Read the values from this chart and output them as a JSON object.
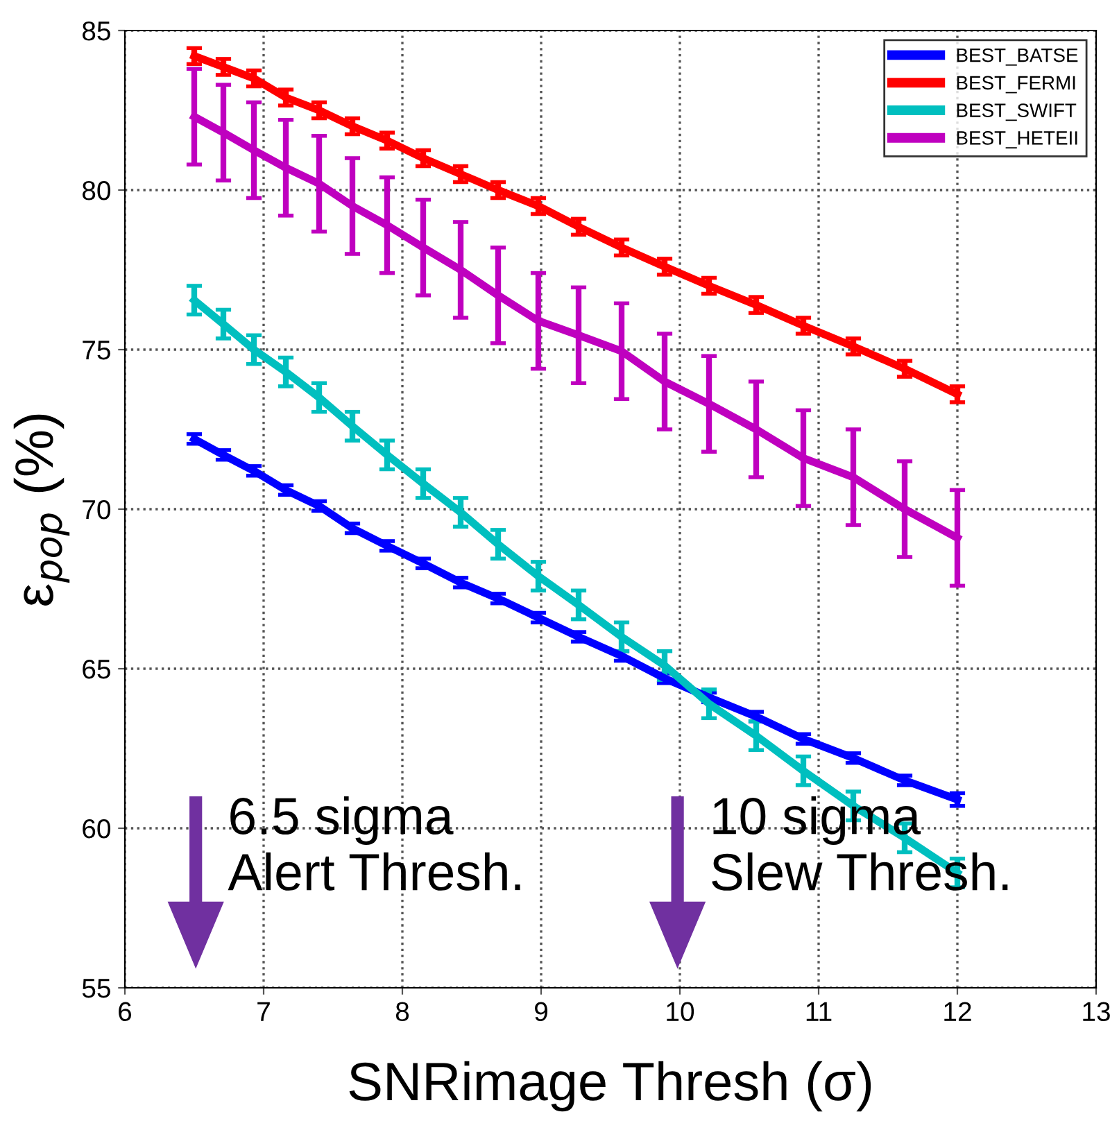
{
  "chart_data": {
    "type": "line",
    "xlabel": "SNRimage Thresh (σ)",
    "ylabel": "ε$_{pop}$ (%)",
    "x": [
      6.5,
      6.71,
      6.93,
      7.16,
      7.4,
      7.64,
      7.89,
      8.15,
      8.42,
      8.69,
      8.98,
      9.27,
      9.58,
      9.89,
      10.21,
      10.55,
      10.89,
      11.25,
      11.62,
      12.0
    ],
    "series": [
      {
        "name": "BEST_BATSE",
        "color": "#0000ff",
        "values": [
          72.2,
          71.7,
          71.2,
          70.6,
          70.1,
          69.4,
          68.85,
          68.3,
          67.7,
          67.2,
          66.6,
          66.0,
          65.4,
          64.7,
          64.1,
          63.5,
          62.8,
          62.2,
          61.5,
          60.9
        ],
        "errors": [
          0.15,
          0.15,
          0.15,
          0.15,
          0.15,
          0.15,
          0.15,
          0.15,
          0.15,
          0.15,
          0.15,
          0.15,
          0.15,
          0.15,
          0.15,
          0.15,
          0.15,
          0.15,
          0.15,
          0.2
        ]
      },
      {
        "name": "BEST_FERMI",
        "color": "#ff0000",
        "values": [
          84.2,
          83.86,
          83.5,
          82.9,
          82.5,
          82.0,
          81.55,
          81.0,
          80.5,
          80.0,
          79.5,
          78.85,
          78.2,
          77.6,
          77.0,
          76.4,
          75.75,
          75.1,
          74.4,
          73.6
        ],
        "errors": [
          0.25,
          0.25,
          0.25,
          0.25,
          0.25,
          0.25,
          0.25,
          0.25,
          0.25,
          0.25,
          0.25,
          0.25,
          0.25,
          0.25,
          0.25,
          0.25,
          0.25,
          0.25,
          0.25,
          0.25
        ]
      },
      {
        "name": "BEST_SWIFT",
        "color": "#00bfbf",
        "values": [
          76.55,
          75.8,
          75.0,
          74.3,
          73.5,
          72.6,
          71.7,
          70.8,
          69.9,
          68.9,
          67.9,
          67.0,
          66.0,
          65.1,
          63.9,
          62.9,
          61.8,
          60.7,
          59.7,
          58.6
        ],
        "errors": [
          0.45,
          0.45,
          0.45,
          0.45,
          0.45,
          0.45,
          0.45,
          0.45,
          0.45,
          0.45,
          0.45,
          0.45,
          0.45,
          0.45,
          0.45,
          0.45,
          0.45,
          0.45,
          0.45,
          0.45
        ]
      },
      {
        "name": "BEST_HETEII",
        "color": "#bf00bf",
        "values": [
          82.3,
          81.8,
          81.25,
          80.7,
          80.2,
          79.5,
          78.9,
          78.2,
          77.5,
          76.7,
          75.9,
          75.45,
          74.95,
          74.0,
          73.3,
          72.5,
          71.6,
          71.0,
          70.0,
          69.1
        ],
        "errors": [
          1.5,
          1.5,
          1.5,
          1.5,
          1.5,
          1.5,
          1.5,
          1.5,
          1.5,
          1.5,
          1.5,
          1.5,
          1.5,
          1.5,
          1.5,
          1.5,
          1.5,
          1.5,
          1.5,
          1.5
        ]
      }
    ],
    "xlim": [
      6,
      13
    ],
    "xticks": [
      6,
      7,
      8,
      9,
      10,
      11,
      12,
      13
    ],
    "ylim": [
      55,
      85
    ],
    "yticks": [
      55,
      60,
      65,
      70,
      75,
      80,
      85
    ],
    "grid": true,
    "legend": "top right",
    "marker": "none",
    "line_style": "solid",
    "annotations": [
      "6.5 sigma\nAlert Thresh.",
      "10 sigma\nSlew Thresh."
    ]
  }
}
